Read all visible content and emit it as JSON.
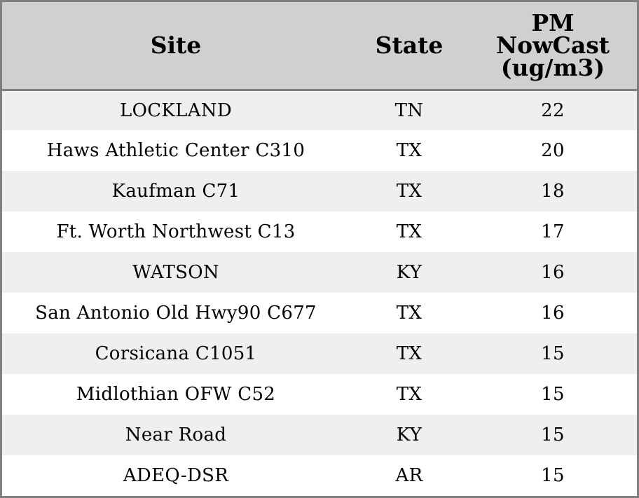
{
  "table": {
    "headers": {
      "site": "Site",
      "state": "State",
      "pm_line1": "PM",
      "pm_line2": "NowCast",
      "pm_line3": "(ug/m3)"
    },
    "rows": [
      {
        "site": "LOCKLAND",
        "state": "TN",
        "pm": "22"
      },
      {
        "site": "Haws Athletic Center C310",
        "state": "TX",
        "pm": "20"
      },
      {
        "site": "Kaufman C71",
        "state": "TX",
        "pm": "18"
      },
      {
        "site": "Ft. Worth Northwest C13",
        "state": "TX",
        "pm": "17"
      },
      {
        "site": "WATSON",
        "state": "KY",
        "pm": "16"
      },
      {
        "site": "San Antonio Old Hwy90 C677",
        "state": "TX",
        "pm": "16"
      },
      {
        "site": "Corsicana C1051",
        "state": "TX",
        "pm": "15"
      },
      {
        "site": "Midlothian OFW C52",
        "state": "TX",
        "pm": "15"
      },
      {
        "site": "Near Road",
        "state": "KY",
        "pm": "15"
      },
      {
        "site": "ADEQ-DSR",
        "state": "AR",
        "pm": "15"
      }
    ]
  },
  "colors": {
    "header_bg": "#d0d0d0",
    "row_alt_bg": "#efefef",
    "row_bg": "#ffffff",
    "border": "#808080"
  }
}
